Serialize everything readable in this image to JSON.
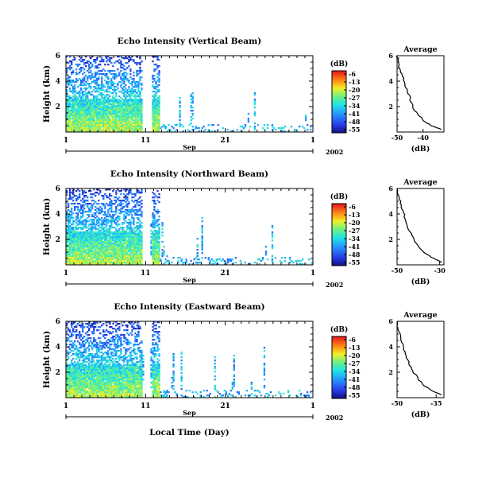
{
  "chart_data": [
    {
      "type": "heatmap",
      "title": "Echo Intensity (Vertical Beam)",
      "ylabel": "Height (km)",
      "yticks": [
        "6",
        "4",
        "2"
      ],
      "ylim": [
        0,
        6
      ],
      "xticks": [
        "1",
        "11",
        "21",
        "1"
      ],
      "xlim": [
        1,
        32
      ],
      "month": "Sep",
      "year": "2002",
      "colorbar": {
        "unit": "(dB)",
        "ticks": [
          "-6",
          "-13",
          "-20",
          "-27",
          "-34",
          "-41",
          "-48",
          "-55"
        ],
        "range": [
          -55,
          -6
        ]
      },
      "average": {
        "title": "Average",
        "xlabel": "(dB)",
        "xticks": [
          "-50",
          "-40"
        ],
        "yticks": [
          "6",
          "4",
          "2"
        ],
        "xlim": [
          -50,
          -32
        ],
        "ylim": [
          0,
          6
        ],
        "profile": [
          [
            -33,
            0.2
          ],
          [
            -37,
            0.5
          ],
          [
            -40,
            0.9
          ],
          [
            -42,
            1.4
          ],
          [
            -44,
            2.0
          ],
          [
            -45,
            2.6
          ],
          [
            -46,
            3.2
          ],
          [
            -47,
            3.8
          ],
          [
            -48,
            4.4
          ],
          [
            -49,
            5.0
          ],
          [
            -49.5,
            5.6
          ],
          [
            -50,
            6.0
          ]
        ]
      }
    },
    {
      "type": "heatmap",
      "title": "Echo Intensity (Northward Beam)",
      "ylabel": "Height (km)",
      "yticks": [
        "6",
        "4",
        "2"
      ],
      "ylim": [
        0,
        6
      ],
      "xticks": [
        "1",
        "11",
        "21",
        "1"
      ],
      "xlim": [
        1,
        32
      ],
      "month": "Sep",
      "year": "2002",
      "colorbar": {
        "unit": "(dB)",
        "ticks": [
          "-6",
          "-13",
          "-20",
          "-27",
          "-34",
          "-41",
          "-48",
          "-55"
        ],
        "range": [
          -55,
          -6
        ]
      },
      "average": {
        "title": "Average",
        "xlabel": "(dB)",
        "xticks": [
          "-50",
          "-30"
        ],
        "yticks": [
          "6",
          "4",
          "2"
        ],
        "xlim": [
          -50,
          -28
        ],
        "ylim": [
          0,
          6
        ],
        "profile": [
          [
            -29,
            0.2
          ],
          [
            -34,
            0.6
          ],
          [
            -38,
            1.1
          ],
          [
            -41,
            1.7
          ],
          [
            -43,
            2.3
          ],
          [
            -45,
            2.9
          ],
          [
            -46,
            3.5
          ],
          [
            -47,
            4.1
          ],
          [
            -48,
            4.7
          ],
          [
            -49,
            5.3
          ],
          [
            -50,
            6.0
          ]
        ]
      }
    },
    {
      "type": "heatmap",
      "title": "Echo Intensity (Eastward Beam)",
      "ylabel": "Height (km)",
      "yticks": [
        "6",
        "4",
        "2"
      ],
      "ylim": [
        0,
        6
      ],
      "xticks": [
        "1",
        "11",
        "21",
        "1"
      ],
      "xlim": [
        1,
        32
      ],
      "month": "Sep",
      "year": "2002",
      "xlabel": "Local Time (Day)",
      "colorbar": {
        "unit": "(dB)",
        "ticks": [
          "-6",
          "-13",
          "-20",
          "-27",
          "-34",
          "-41",
          "-48",
          "-55"
        ],
        "range": [
          -55,
          -6
        ]
      },
      "average": {
        "title": "Average",
        "xlabel": "(dB)",
        "xticks": [
          "-50",
          "-35"
        ],
        "yticks": [
          "6",
          "4",
          "2"
        ],
        "xlim": [
          -50,
          -32
        ],
        "ylim": [
          0,
          6
        ],
        "profile": [
          [
            -33,
            0.2
          ],
          [
            -37,
            0.6
          ],
          [
            -40,
            1.0
          ],
          [
            -42,
            1.5
          ],
          [
            -44,
            2.1
          ],
          [
            -45.5,
            2.7
          ],
          [
            -46.5,
            3.3
          ],
          [
            -47.5,
            3.9
          ],
          [
            -48.5,
            4.5
          ],
          [
            -49.3,
            5.2
          ],
          [
            -50,
            6.0
          ]
        ]
      }
    }
  ]
}
